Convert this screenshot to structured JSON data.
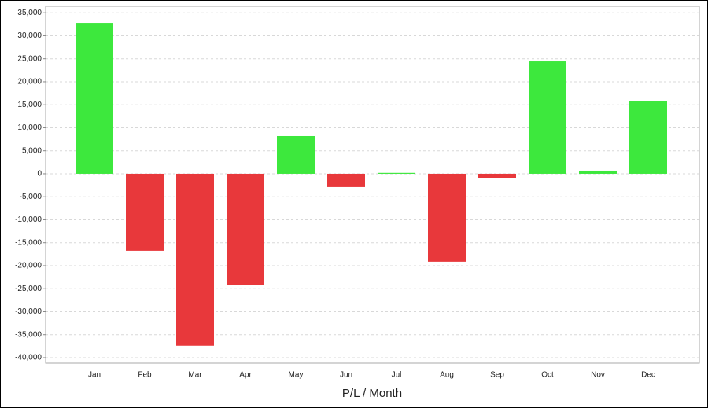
{
  "chart_data": {
    "type": "bar",
    "x_label": "P/L / Month",
    "categories": [
      "Jan",
      "Feb",
      "Mar",
      "Apr",
      "May",
      "Jun",
      "Jul",
      "Aug",
      "Sep",
      "Oct",
      "Nov",
      "Dec"
    ],
    "values": [
      32800,
      -16740,
      -37400,
      -24260,
      8200,
      -2900,
      200,
      -19130,
      -1020,
      24430,
      680,
      15890
    ],
    "positive_color": "#3de83d",
    "negative_color": "#e8383b",
    "ylim": [
      -41200,
      36400
    ],
    "yticks": [
      {
        "value": -40000,
        "label": "-40,000"
      },
      {
        "value": -35000,
        "label": "-35,000"
      },
      {
        "value": -30000,
        "label": "-30,000"
      },
      {
        "value": -25000,
        "label": "-25,000"
      },
      {
        "value": -20000,
        "label": "-20,000"
      },
      {
        "value": -15000,
        "label": "-15,000"
      },
      {
        "value": -10000,
        "label": "-10,000"
      },
      {
        "value": -5000,
        "label": "-5,000"
      },
      0,
      {
        "value": 5000,
        "label": "5,000"
      },
      {
        "value": 10000,
        "label": "10,000"
      },
      {
        "value": 15000,
        "label": "15,000"
      },
      {
        "value": 20000,
        "label": "20,000"
      },
      {
        "value": 25000,
        "label": "25,000"
      },
      {
        "value": 30000,
        "label": "30,000"
      },
      {
        "value": 35000,
        "label": "35,000"
      }
    ],
    "grid": true
  }
}
